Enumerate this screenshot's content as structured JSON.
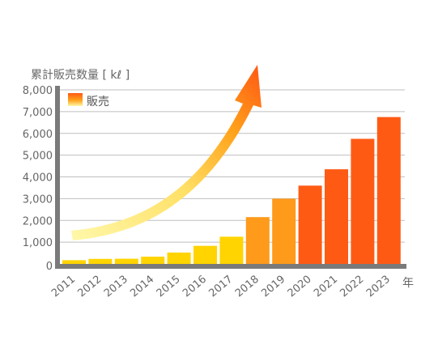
{
  "chart_data": {
    "type": "bar",
    "ylabel": "累計販売数量 [ kℓ ]",
    "xunit": "年",
    "legend": {
      "label": "販売",
      "placement": "top-left"
    },
    "ylim": [
      0,
      8000
    ],
    "yticks": [
      "0",
      "1,000",
      "2,000",
      "3,000",
      "4,000",
      "5,000",
      "6,000",
      "7,000",
      "8,000"
    ],
    "grid": true,
    "categories": [
      "2011",
      "2012",
      "2013",
      "2014",
      "2015",
      "2016",
      "2017",
      "2018",
      "2019",
      "2020",
      "2021",
      "2022",
      "2023"
    ],
    "values": [
      170,
      230,
      240,
      330,
      520,
      830,
      1250,
      2150,
      3000,
      3600,
      4350,
      5750,
      6750
    ],
    "bar_colors": [
      "#ffd400",
      "#ffd400",
      "#ffd400",
      "#ffd400",
      "#ffd400",
      "#ffd400",
      "#ffd400",
      "#ff9a1a",
      "#ff9a1a",
      "#ff5a14",
      "#ff5a14",
      "#ff5a14",
      "#ff5a14"
    ],
    "colors": {
      "axis": "#7a7a7a",
      "grid": "#bfbfbf",
      "arrow_start": "#fff7a8",
      "arrow_end": "#ff5a14"
    }
  }
}
